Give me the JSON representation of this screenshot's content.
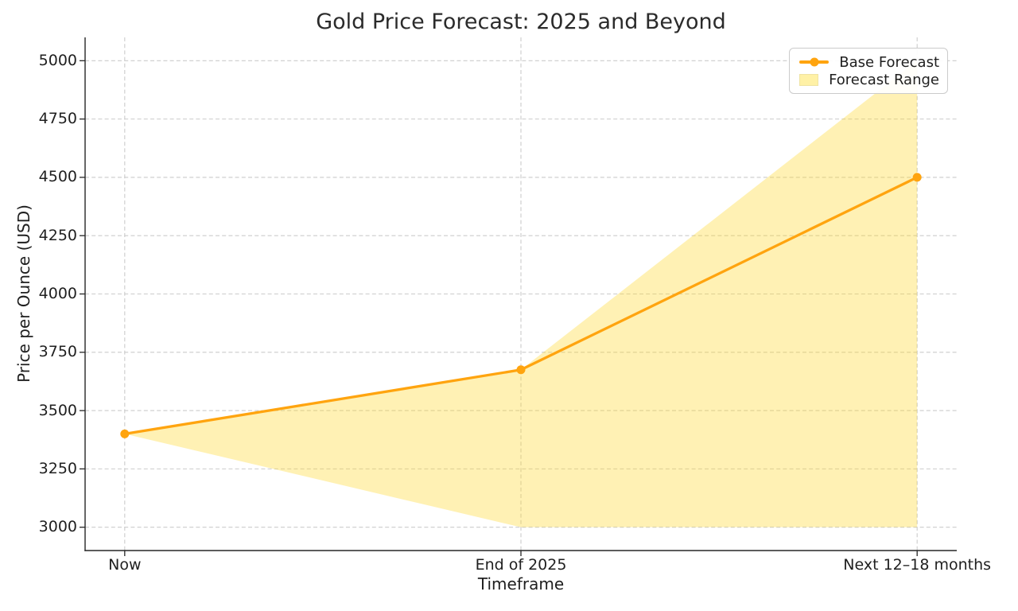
{
  "figure": {
    "title": "Gold Price Forecast: 2025 and Beyond",
    "xlabel": "Timeframe",
    "ylabel": "Price per Ounce (USD)"
  },
  "legend": {
    "position": "upper right",
    "items": [
      {
        "label": "Base Forecast",
        "type": "line"
      },
      {
        "label": "Forecast Range",
        "type": "patch"
      }
    ]
  },
  "chart_data": {
    "type": "line",
    "title": "Gold Price Forecast: 2025 and Beyond",
    "xlabel": "Timeframe",
    "ylabel": "Price per Ounce (USD)",
    "categories": [
      "Now",
      "End of 2025",
      "Next 12–18 months"
    ],
    "series": [
      {
        "name": "Base Forecast",
        "type": "line",
        "values": [
          3400,
          3675,
          4500
        ]
      },
      {
        "name": "Forecast Range",
        "type": "band",
        "upper": [
          3400,
          3675,
          5000
        ],
        "lower": [
          3400,
          3000,
          3000
        ]
      }
    ],
    "yticks": [
      3000,
      3250,
      3500,
      3750,
      4000,
      4250,
      4500,
      4750,
      5000
    ],
    "ylim": [
      2900,
      5100
    ],
    "grid": true,
    "grid_style": "dashed",
    "legend_position": "upper right"
  },
  "colors": {
    "line": "#FFA40F",
    "marker": "#FFA40F",
    "band_fill": "rgba(255,216,40,0.35)",
    "band_solid": "#FFF1A6",
    "grid": "#cbcbcb",
    "spine": "#262626",
    "text": "#1f1f1f",
    "legend_border": "#cbcbcb"
  }
}
